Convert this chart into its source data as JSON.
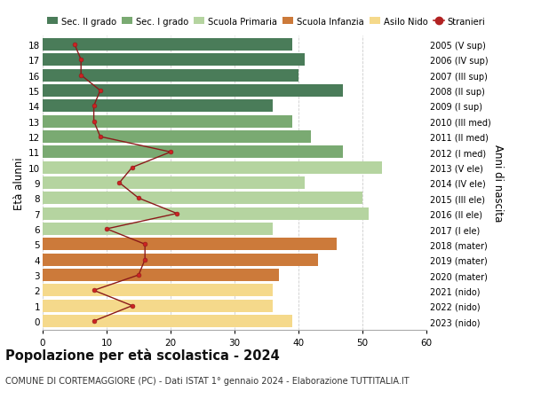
{
  "ages": [
    18,
    17,
    16,
    15,
    14,
    13,
    12,
    11,
    10,
    9,
    8,
    7,
    6,
    5,
    4,
    3,
    2,
    1,
    0
  ],
  "years": [
    "2005 (V sup)",
    "2006 (IV sup)",
    "2007 (III sup)",
    "2008 (II sup)",
    "2009 (I sup)",
    "2010 (III med)",
    "2011 (II med)",
    "2012 (I med)",
    "2013 (V ele)",
    "2014 (IV ele)",
    "2015 (III ele)",
    "2016 (II ele)",
    "2017 (I ele)",
    "2018 (mater)",
    "2019 (mater)",
    "2020 (mater)",
    "2021 (nido)",
    "2022 (nido)",
    "2023 (nido)"
  ],
  "bar_values": [
    39,
    41,
    40,
    47,
    36,
    39,
    42,
    47,
    53,
    41,
    50,
    51,
    36,
    46,
    43,
    37,
    36,
    36,
    39
  ],
  "bar_colors": [
    "#4a7c59",
    "#4a7c59",
    "#4a7c59",
    "#4a7c59",
    "#4a7c59",
    "#7aaa72",
    "#7aaa72",
    "#7aaa72",
    "#b5d4a0",
    "#b5d4a0",
    "#b5d4a0",
    "#b5d4a0",
    "#b5d4a0",
    "#cc7a3a",
    "#cc7a3a",
    "#cc7a3a",
    "#f5d98b",
    "#f5d98b",
    "#f5d98b"
  ],
  "stranieri_values": [
    5,
    6,
    6,
    9,
    8,
    8,
    9,
    20,
    14,
    12,
    15,
    21,
    10,
    16,
    16,
    15,
    8,
    14,
    8
  ],
  "legend_labels": [
    "Sec. II grado",
    "Sec. I grado",
    "Scuola Primaria",
    "Scuola Infanzia",
    "Asilo Nido",
    "Stranieri"
  ],
  "legend_colors": [
    "#4a7c59",
    "#7aaa72",
    "#b5d4a0",
    "#cc7a3a",
    "#f5d98b",
    "#b22222"
  ],
  "title": "Popolazione per età scolastica - 2024",
  "subtitle": "COMUNE DI CORTEMAGGIORE (PC) - Dati ISTAT 1° gennaio 2024 - Elaborazione TUTTITALIA.IT",
  "ylabel_left": "Età alunni",
  "ylabel_right": "Anni di nascita",
  "xlim": [
    0,
    60
  ],
  "background_color": "#ffffff",
  "grid_color": "#cccccc"
}
